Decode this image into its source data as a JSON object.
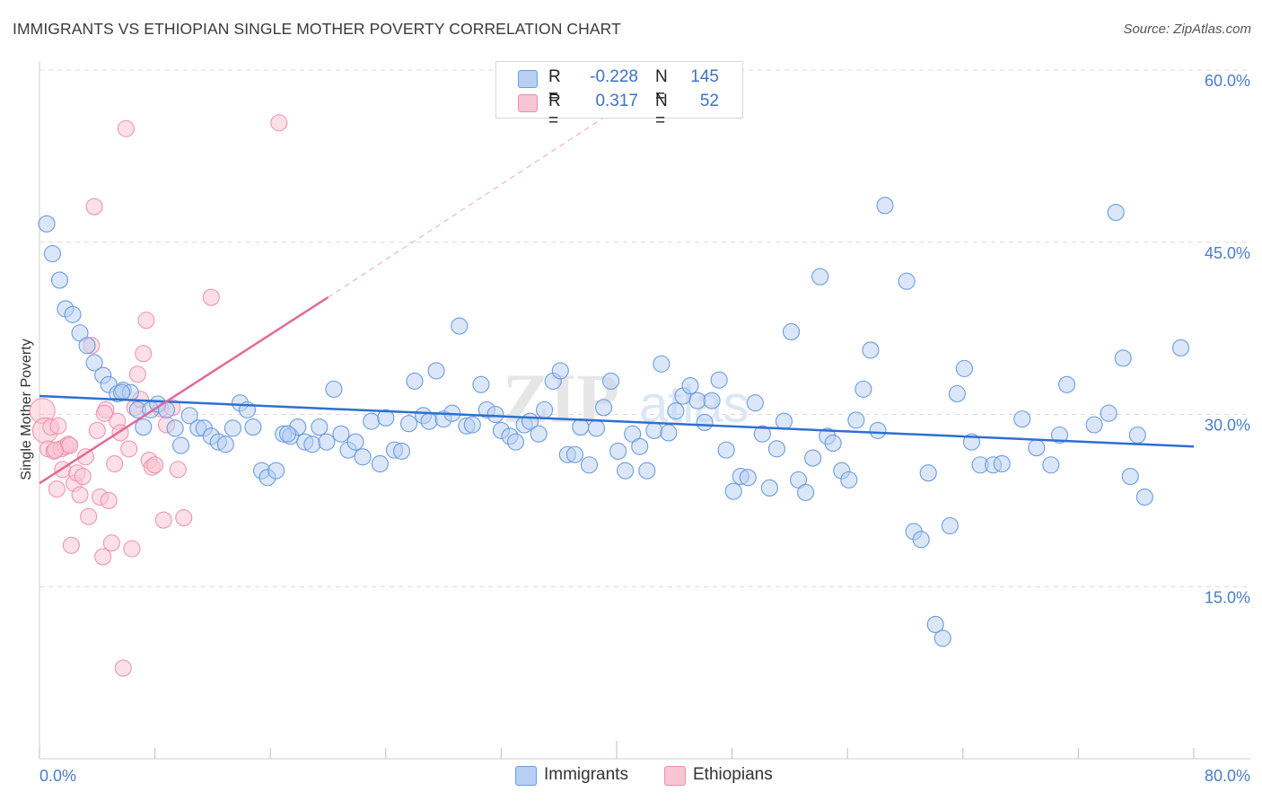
{
  "header": {
    "title": "IMMIGRANTS VS ETHIOPIAN SINGLE MOTHER POVERTY CORRELATION CHART",
    "source": "Source: ZipAtlas.com"
  },
  "legend": {
    "rows": [
      {
        "r_label": "R =",
        "r_value": "-0.228",
        "n_label": "N =",
        "n_value": "145"
      },
      {
        "r_label": "R =",
        "r_value": "0.317",
        "n_label": "N =",
        "n_value": "52"
      }
    ]
  },
  "bottom_legend": {
    "immigrants": "Immigrants",
    "ethiopians": "Ethiopians"
  },
  "colors": {
    "immigrants_fill": "#b7cff3",
    "immigrants_stroke": "#6b9be0",
    "immigrants_line": "#2e6fd1",
    "ethiopians_fill": "#f9c5d4",
    "ethiopians_stroke": "#ec8faa",
    "ethiopians_line": "#e06b96",
    "tick_text": "#4a7cc9",
    "grid": "#d9d9d9"
  },
  "chart_data": {
    "type": "scatter",
    "title": "IMMIGRANTS VS ETHIOPIAN SINGLE MOTHER POVERTY CORRELATION CHART",
    "xlabel": "",
    "ylabel": "Single Mother Poverty",
    "xlim": [
      0,
      80
    ],
    "ylim": [
      0,
      60
    ],
    "x_tick_labels": [
      "0.0%",
      "80.0%"
    ],
    "y_tick_labels": [
      "15.0%",
      "30.0%",
      "45.0%",
      "60.0%"
    ],
    "y_ticks": [
      15,
      30,
      45,
      60
    ],
    "grid": "horizontal dashed",
    "legend_position": "top-center",
    "watermark": "ZIPatlas",
    "series": [
      {
        "name": "Immigrants",
        "trend": {
          "x": [
            0,
            80
          ],
          "y": [
            31.6,
            27.2
          ],
          "r": -0.228,
          "n": 145
        },
        "points": [
          [
            0.5,
            46.6
          ],
          [
            0.9,
            44.0
          ],
          [
            1.4,
            41.7
          ],
          [
            1.8,
            39.2
          ],
          [
            2.3,
            38.7
          ],
          [
            2.8,
            37.1
          ],
          [
            3.3,
            36.0
          ],
          [
            3.8,
            34.5
          ],
          [
            4.4,
            33.4
          ],
          [
            4.8,
            32.6
          ],
          [
            5.4,
            31.8
          ],
          [
            5.8,
            32.1
          ],
          [
            6.3,
            31.9
          ],
          [
            6.8,
            30.4
          ],
          [
            7.2,
            28.9
          ],
          [
            7.7,
            30.4
          ],
          [
            8.2,
            30.9
          ],
          [
            8.8,
            30.4
          ],
          [
            9.4,
            28.8
          ],
          [
            9.8,
            27.3
          ],
          [
            10.4,
            29.9
          ],
          [
            11.0,
            28.8
          ],
          [
            11.4,
            28.8
          ],
          [
            11.9,
            28.1
          ],
          [
            12.4,
            27.6
          ],
          [
            12.9,
            27.4
          ],
          [
            13.4,
            28.8
          ],
          [
            13.9,
            31.0
          ],
          [
            14.4,
            30.4
          ],
          [
            14.8,
            28.9
          ],
          [
            15.4,
            25.1
          ],
          [
            15.8,
            24.5
          ],
          [
            16.4,
            25.1
          ],
          [
            16.9,
            28.3
          ],
          [
            17.4,
            28.1
          ],
          [
            17.9,
            28.9
          ],
          [
            18.4,
            27.6
          ],
          [
            18.9,
            27.4
          ],
          [
            19.4,
            28.9
          ],
          [
            19.9,
            27.6
          ],
          [
            20.4,
            32.2
          ],
          [
            20.9,
            28.3
          ],
          [
            21.4,
            26.9
          ],
          [
            21.9,
            27.6
          ],
          [
            22.4,
            26.3
          ],
          [
            23.0,
            29.4
          ],
          [
            23.6,
            25.7
          ],
          [
            24.0,
            29.7
          ],
          [
            24.6,
            26.9
          ],
          [
            25.1,
            26.8
          ],
          [
            25.6,
            29.2
          ],
          [
            26.0,
            32.9
          ],
          [
            26.6,
            29.9
          ],
          [
            27.0,
            29.4
          ],
          [
            27.5,
            33.8
          ],
          [
            28.0,
            29.6
          ],
          [
            28.6,
            30.1
          ],
          [
            29.1,
            37.7
          ],
          [
            29.6,
            29.0
          ],
          [
            30.0,
            29.1
          ],
          [
            30.6,
            32.6
          ],
          [
            31.0,
            30.4
          ],
          [
            31.6,
            30.0
          ],
          [
            32.0,
            28.6
          ],
          [
            32.6,
            28.1
          ],
          [
            33.0,
            27.6
          ],
          [
            33.6,
            29.1
          ],
          [
            34.0,
            29.4
          ],
          [
            34.6,
            28.3
          ],
          [
            35.0,
            30.4
          ],
          [
            35.6,
            32.9
          ],
          [
            36.1,
            33.8
          ],
          [
            36.6,
            26.5
          ],
          [
            37.1,
            26.5
          ],
          [
            37.5,
            28.9
          ],
          [
            38.1,
            25.6
          ],
          [
            38.6,
            28.8
          ],
          [
            39.1,
            30.6
          ],
          [
            39.6,
            32.9
          ],
          [
            40.1,
            26.8
          ],
          [
            40.6,
            25.1
          ],
          [
            41.1,
            28.3
          ],
          [
            41.6,
            27.2
          ],
          [
            42.1,
            25.1
          ],
          [
            42.6,
            28.6
          ],
          [
            43.1,
            34.4
          ],
          [
            43.6,
            28.4
          ],
          [
            44.1,
            30.3
          ],
          [
            44.6,
            31.6
          ],
          [
            45.1,
            32.5
          ],
          [
            45.6,
            31.2
          ],
          [
            46.1,
            29.3
          ],
          [
            46.6,
            31.2
          ],
          [
            47.1,
            33.0
          ],
          [
            47.6,
            26.9
          ],
          [
            48.1,
            23.3
          ],
          [
            48.6,
            24.6
          ],
          [
            49.1,
            24.5
          ],
          [
            49.6,
            31.0
          ],
          [
            50.1,
            28.3
          ],
          [
            50.6,
            23.6
          ],
          [
            51.1,
            27.0
          ],
          [
            51.6,
            29.4
          ],
          [
            52.1,
            37.2
          ],
          [
            52.6,
            24.3
          ],
          [
            53.1,
            23.2
          ],
          [
            53.6,
            26.2
          ],
          [
            54.1,
            42.0
          ],
          [
            54.6,
            28.1
          ],
          [
            55.0,
            27.5
          ],
          [
            55.6,
            25.1
          ],
          [
            56.1,
            24.3
          ],
          [
            56.6,
            29.5
          ],
          [
            57.1,
            32.2
          ],
          [
            57.6,
            35.6
          ],
          [
            58.1,
            28.6
          ],
          [
            58.6,
            48.2
          ],
          [
            60.1,
            41.6
          ],
          [
            60.6,
            19.8
          ],
          [
            61.1,
            19.1
          ],
          [
            61.6,
            24.9
          ],
          [
            62.1,
            11.7
          ],
          [
            62.6,
            10.5
          ],
          [
            63.1,
            20.3
          ],
          [
            63.6,
            31.8
          ],
          [
            64.1,
            34.0
          ],
          [
            64.6,
            27.6
          ],
          [
            65.2,
            25.6
          ],
          [
            66.1,
            25.6
          ],
          [
            66.7,
            25.7
          ],
          [
            68.1,
            29.6
          ],
          [
            69.1,
            27.1
          ],
          [
            70.1,
            25.6
          ],
          [
            70.7,
            28.2
          ],
          [
            71.2,
            32.6
          ],
          [
            73.1,
            29.1
          ],
          [
            74.1,
            30.1
          ],
          [
            74.6,
            47.6
          ],
          [
            75.1,
            34.9
          ],
          [
            75.6,
            24.6
          ],
          [
            76.1,
            28.2
          ],
          [
            76.6,
            22.8
          ],
          [
            79.1,
            35.8
          ],
          [
            5.7,
            31.9
          ],
          [
            17.2,
            28.3
          ]
        ]
      },
      {
        "name": "Ethiopians",
        "trend": {
          "x": [
            0,
            20
          ],
          "y": [
            24.0,
            40.2
          ],
          "r": 0.317,
          "n": 52
        },
        "trend_extension": {
          "x": [
            20,
            40.5
          ],
          "y": [
            40.2,
            57.0
          ]
        },
        "points": [
          [
            0.2,
            30.3
          ],
          [
            0.4,
            28.6
          ],
          [
            0.6,
            27.0
          ],
          [
            0.8,
            28.9
          ],
          [
            1.0,
            26.8
          ],
          [
            1.2,
            23.5
          ],
          [
            1.3,
            29.0
          ],
          [
            1.5,
            27.0
          ],
          [
            1.6,
            25.2
          ],
          [
            1.8,
            27.2
          ],
          [
            2.0,
            27.4
          ],
          [
            2.2,
            18.6
          ],
          [
            2.4,
            24.0
          ],
          [
            2.6,
            24.9
          ],
          [
            2.8,
            23.0
          ],
          [
            3.0,
            24.6
          ],
          [
            3.2,
            26.3
          ],
          [
            3.4,
            21.1
          ],
          [
            3.6,
            36.0
          ],
          [
            3.8,
            48.1
          ],
          [
            4.0,
            28.6
          ],
          [
            4.2,
            22.8
          ],
          [
            4.4,
            17.6
          ],
          [
            4.6,
            30.4
          ],
          [
            4.8,
            22.5
          ],
          [
            5.0,
            18.8
          ],
          [
            5.2,
            25.7
          ],
          [
            5.4,
            29.4
          ],
          [
            5.6,
            28.4
          ],
          [
            5.8,
            7.9
          ],
          [
            6.0,
            54.9
          ],
          [
            6.2,
            27.0
          ],
          [
            6.4,
            18.3
          ],
          [
            6.6,
            30.6
          ],
          [
            6.8,
            33.5
          ],
          [
            7.0,
            31.3
          ],
          [
            7.2,
            35.3
          ],
          [
            7.4,
            38.2
          ],
          [
            7.6,
            26.0
          ],
          [
            7.8,
            25.4
          ],
          [
            8.0,
            25.6
          ],
          [
            8.4,
            30.5
          ],
          [
            8.8,
            29.1
          ],
          [
            8.6,
            20.8
          ],
          [
            9.2,
            30.6
          ],
          [
            9.6,
            25.2
          ],
          [
            10.0,
            21.0
          ],
          [
            11.9,
            40.2
          ],
          [
            16.6,
            55.4
          ],
          [
            1.1,
            26.9
          ],
          [
            2.1,
            27.3
          ],
          [
            4.5,
            30.1
          ]
        ]
      }
    ]
  }
}
